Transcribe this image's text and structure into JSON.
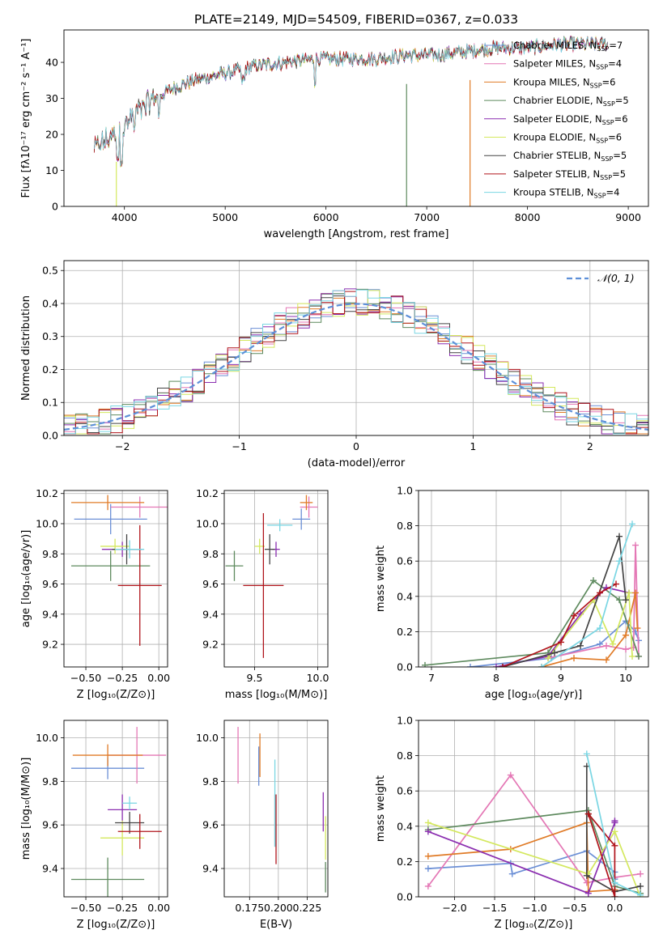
{
  "title": "PLATE=2149, MJD=54509, FIBERID=0367, z=0.033",
  "model_colors": [
    "#6b8fd6",
    "#e477b5",
    "#e07b27",
    "#5e8a5e",
    "#8b2fb0",
    "#d4e85e",
    "#444444",
    "#b0141b",
    "#7ad6e3"
  ],
  "chart_data": [
    {
      "id": "spectrum",
      "type": "line",
      "xlabel": "wavelength [Angstrom, rest frame]",
      "ylabel": "Flux [fλ10⁻¹⁷ erg cm⁻² s⁻¹ A⁻¹]",
      "xlim": [
        3400,
        9200
      ],
      "ylim": [
        0,
        49
      ],
      "xticks": [
        "4000",
        "5000",
        "6000",
        "7000",
        "8000",
        "9000"
      ],
      "yticks": [
        "0",
        "10",
        "20",
        "30",
        "40"
      ],
      "legend_position": "right",
      "legend": [
        "Chabrier MILES, N_SSP=7",
        "Salpeter MILES, N_SSP=4",
        "Kroupa MILES, N_SSP=6",
        "Chabrier ELODIE, N_SSP=5",
        "Salpeter ELODIE, N_SSP=6",
        "Kroupa ELODIE, N_SSP=6",
        "Chabrier STELIB, N_SSP=5",
        "Salpeter STELIB, N_SSP=5",
        "Kroupa STELIB, N_SSP=4"
      ],
      "continuum": {
        "x": [
          3700,
          3800,
          3900,
          4000,
          4100,
          4300,
          4500,
          4700,
          5000,
          5300,
          5600,
          5900,
          6200,
          6500,
          6800,
          7100,
          7400,
          7700,
          8000,
          8300,
          8600,
          8800
        ],
        "y": [
          16,
          18,
          20,
          22,
          26,
          30,
          33,
          35,
          37,
          39,
          40,
          41,
          41,
          41,
          42,
          42,
          43,
          44,
          44,
          45,
          45,
          45
        ]
      },
      "dropouts": [
        {
          "x": 3920,
          "y": 0
        },
        {
          "x": 6800,
          "y": 0
        },
        {
          "x": 7430,
          "y": 0
        }
      ]
    },
    {
      "id": "residuals",
      "type": "histogram",
      "xlabel": "(data-model)/error",
      "ylabel": "Normed distribution",
      "xlim": [
        -2.5,
        2.5
      ],
      "ylim": [
        0,
        0.53
      ],
      "xticks": [
        "−2",
        "−1",
        "0",
        "1",
        "2"
      ],
      "yticks": [
        "0.0",
        "0.1",
        "0.2",
        "0.3",
        "0.4",
        "0.5"
      ],
      "grid": true,
      "legend": [
        "𝒩(0, 1)"
      ],
      "legend_position": "top-right",
      "bin_width": 0.1,
      "bin_start": -2.5
    },
    {
      "id": "age_vs_Z",
      "type": "errorbar",
      "xlabel": "Z [log₁₀(Z/Z⊙)]",
      "ylabel": "age  [log₁₀(age/yr)]",
      "xlim": [
        -0.65,
        0.06
      ],
      "ylim": [
        9.05,
        10.22
      ],
      "xticks": [
        "−0.50",
        "−0.25",
        "0.00"
      ],
      "yticks": [
        "9.2",
        "9.4",
        "9.6",
        "9.8",
        "10.0",
        "10.2"
      ],
      "points": [
        {
          "x": -0.33,
          "y": 10.03,
          "xerr": 0.25,
          "yerr": 0.1
        },
        {
          "x": -0.13,
          "y": 10.11,
          "xerr": 0.2,
          "yerr": 0.07
        },
        {
          "x": -0.35,
          "y": 10.14,
          "xerr": 0.25,
          "yerr": 0.05
        },
        {
          "x": -0.33,
          "y": 9.72,
          "xerr": 0.27,
          "yerr": 0.1
        },
        {
          "x": -0.25,
          "y": 9.83,
          "xerr": 0.14,
          "yerr": 0.05
        },
        {
          "x": -0.3,
          "y": 9.85,
          "xerr": 0.1,
          "yerr": 0.05
        },
        {
          "x": -0.22,
          "y": 9.83,
          "xerr": 0.1,
          "yerr": 0.1
        },
        {
          "x": -0.13,
          "y": 9.59,
          "xerr": 0.15,
          "yerr": 0.4
        },
        {
          "x": -0.2,
          "y": 9.83,
          "xerr": 0.1,
          "yerr": 0.06
        }
      ]
    },
    {
      "id": "age_vs_mass",
      "type": "errorbar",
      "xlabel": "mass [log₁₀(M/M⊙)]",
      "ylabel": "",
      "xlim": [
        9.26,
        10.08
      ],
      "ylim": [
        9.05,
        10.22
      ],
      "xticks": [
        "9.5",
        "10.0"
      ],
      "yticks": [
        "9.2",
        "9.4",
        "9.6",
        "9.8",
        "10.0",
        "10.2"
      ],
      "points": [
        {
          "x": 9.87,
          "y": 10.03,
          "xerr": 0.07,
          "yerr": 0.07
        },
        {
          "x": 9.93,
          "y": 10.11,
          "xerr": 0.07,
          "yerr": 0.07
        },
        {
          "x": 9.91,
          "y": 10.14,
          "xerr": 0.05,
          "yerr": 0.05
        },
        {
          "x": 9.34,
          "y": 9.72,
          "xerr": 0.07,
          "yerr": 0.1
        },
        {
          "x": 9.67,
          "y": 9.83,
          "xerr": 0.03,
          "yerr": 0.05
        },
        {
          "x": 9.54,
          "y": 9.85,
          "xerr": 0.04,
          "yerr": 0.05
        },
        {
          "x": 9.62,
          "y": 9.83,
          "xerr": 0.04,
          "yerr": 0.1
        },
        {
          "x": 9.57,
          "y": 9.59,
          "xerr": 0.16,
          "yerr": 0.48
        },
        {
          "x": 9.7,
          "y": 9.99,
          "xerr": 0.1,
          "yerr": 0.04
        }
      ]
    },
    {
      "id": "weight_vs_age",
      "type": "line",
      "xlabel": "age  [log₁₀(age/yr)]",
      "ylabel": "mass weight",
      "xlim": [
        6.8,
        10.35
      ],
      "ylim": [
        0,
        1
      ],
      "xticks": [
        "7",
        "8",
        "9",
        "10"
      ],
      "yticks": [
        "0.0",
        "0.2",
        "0.4",
        "0.6",
        "0.8",
        "1.0"
      ],
      "series": [
        {
          "x": [
            7.6,
            8.85,
            9.6,
            10.0,
            10.15,
            10.2
          ],
          "y": [
            0.0,
            0.05,
            0.13,
            0.26,
            0.2,
            0.15
          ]
        },
        {
          "x": [
            8.8,
            9.7,
            10.0,
            10.12,
            10.15,
            10.2
          ],
          "y": [
            0.05,
            0.12,
            0.1,
            0.11,
            0.69,
            0.06
          ]
        },
        {
          "x": [
            8.7,
            9.2,
            9.7,
            10.0,
            10.15,
            10.18
          ],
          "y": [
            0.0,
            0.05,
            0.04,
            0.18,
            0.42,
            0.22
          ]
        },
        {
          "x": [
            6.9,
            8.8,
            9.5,
            9.9,
            10.2
          ],
          "y": [
            0.01,
            0.08,
            0.49,
            0.38,
            0.06
          ]
        },
        {
          "x": [
            8.0,
            8.8,
            9.3,
            9.7,
            10.05
          ],
          "y": [
            0.0,
            0.06,
            0.3,
            0.45,
            0.42
          ]
        },
        {
          "x": [
            8.8,
            9.5,
            9.8,
            10.05,
            10.1
          ],
          "y": [
            0.05,
            0.38,
            0.13,
            0.42,
            0.06
          ]
        },
        {
          "x": [
            8.1,
            8.9,
            9.3,
            9.9,
            10.0
          ],
          "y": [
            0.0,
            0.08,
            0.12,
            0.74,
            0.38
          ]
        },
        {
          "x": [
            8.1,
            9.0,
            9.2,
            9.6,
            9.85
          ],
          "y": [
            0.0,
            0.14,
            0.29,
            0.42,
            0.47
          ]
        },
        {
          "x": [
            8.7,
            9.6,
            9.9,
            10.1
          ],
          "y": [
            0.0,
            0.22,
            0.6,
            0.81
          ]
        }
      ]
    },
    {
      "id": "mass_vs_Z",
      "type": "errorbar",
      "xlabel": "Z [log₁₀(Z/Z⊙)]",
      "ylabel": "mass [log₁₀(M/M⊙)]",
      "xlim": [
        -0.65,
        0.06
      ],
      "ylim": [
        9.27,
        10.08
      ],
      "xticks": [
        "−0.50",
        "−0.25",
        "0.00"
      ],
      "yticks": [
        "9.4",
        "9.6",
        "9.8",
        "10.0"
      ],
      "points": [
        {
          "x": -0.35,
          "y": 9.86,
          "xerr": 0.25,
          "yerr": 0.05
        },
        {
          "x": -0.15,
          "y": 9.92,
          "xerr": 0.2,
          "yerr": 0.13
        },
        {
          "x": -0.35,
          "y": 9.92,
          "xerr": 0.24,
          "yerr": 0.05
        },
        {
          "x": -0.35,
          "y": 9.35,
          "xerr": 0.25,
          "yerr": 0.1
        },
        {
          "x": -0.25,
          "y": 9.67,
          "xerr": 0.1,
          "yerr": 0.07
        },
        {
          "x": -0.25,
          "y": 9.54,
          "xerr": 0.15,
          "yerr": 0.08
        },
        {
          "x": -0.2,
          "y": 9.61,
          "xerr": 0.1,
          "yerr": 0.05
        },
        {
          "x": -0.13,
          "y": 9.57,
          "xerr": 0.15,
          "yerr": 0.08
        },
        {
          "x": -0.2,
          "y": 9.7,
          "xerr": 0.05,
          "yerr": 0.03
        }
      ]
    },
    {
      "id": "mass_vs_EBV",
      "type": "errorbar",
      "xlabel": "E(B-V)",
      "ylabel": "",
      "xlim": [
        0.153,
        0.243
      ],
      "ylim": [
        9.27,
        10.08
      ],
      "xticks": [
        "0.175",
        "0.200",
        "0.225"
      ],
      "yticks": [
        "9.4",
        "9.6",
        "9.8",
        "10.0"
      ],
      "points": [
        {
          "x": 0.183,
          "y": 9.87,
          "xerr": 0,
          "yerr": 0.09
        },
        {
          "x": 0.165,
          "y": 9.92,
          "xerr": 0,
          "yerr": 0.13
        },
        {
          "x": 0.184,
          "y": 9.92,
          "xerr": 0,
          "yerr": 0.1
        },
        {
          "x": 0.241,
          "y": 9.36,
          "xerr": 0,
          "yerr": 0.07
        },
        {
          "x": 0.239,
          "y": 9.66,
          "xerr": 0,
          "yerr": 0.09
        },
        {
          "x": 0.241,
          "y": 9.54,
          "xerr": 0,
          "yerr": 0.1
        },
        {
          "x": 0.197,
          "y": 9.62,
          "xerr": 0,
          "yerr": 0.12
        },
        {
          "x": 0.198,
          "y": 9.58,
          "xerr": 0,
          "yerr": 0.16
        },
        {
          "x": 0.197,
          "y": 9.7,
          "xerr": 0,
          "yerr": 0.2
        }
      ]
    },
    {
      "id": "weight_vs_Z",
      "type": "line",
      "xlabel": "Z [log₁₀(Z/Z⊙)]",
      "ylabel": "mass weight",
      "xlim": [
        -2.45,
        0.42
      ],
      "ylim": [
        0,
        1
      ],
      "xticks": [
        "−2.0",
        "−1.5",
        "−1.0",
        "−0.5",
        "0.0"
      ],
      "yticks": [
        "0.0",
        "0.2",
        "0.4",
        "0.6",
        "0.8",
        "1.0"
      ],
      "series": [
        {
          "x": [
            -2.33,
            -1.3,
            -1.28,
            -0.35,
            0.0,
            0.0
          ],
          "y": [
            0.16,
            0.19,
            0.13,
            0.26,
            0.14,
            0.1
          ]
        },
        {
          "x": [
            -2.33,
            -1.3,
            -0.35,
            0.0,
            0.32
          ],
          "y": [
            0.06,
            0.69,
            0.08,
            0.11,
            0.13
          ]
        },
        {
          "x": [
            -2.33,
            -1.3,
            -0.35,
            -0.33,
            0.0
          ],
          "y": [
            0.23,
            0.27,
            0.42,
            0.03,
            0.04
          ]
        },
        {
          "x": [
            -2.33,
            -0.33,
            0.0,
            0.32
          ],
          "y": [
            0.38,
            0.49,
            0.06,
            0.02
          ]
        },
        {
          "x": [
            -2.33,
            -0.33,
            0.0,
            0.0
          ],
          "y": [
            0.37,
            0.02,
            0.42,
            0.43
          ]
        },
        {
          "x": [
            -2.33,
            -0.33,
            0.0,
            0.32
          ],
          "y": [
            0.42,
            0.13,
            0.37,
            0.0
          ]
        },
        {
          "x": [
            -0.35,
            -0.35,
            0.0,
            0.32
          ],
          "y": [
            0.74,
            0.12,
            0.03,
            0.06
          ]
        },
        {
          "x": [
            -0.33,
            0.0,
            0.0,
            -0.33
          ],
          "y": [
            0.47,
            0.29,
            0.0,
            0.47
          ]
        },
        {
          "x": [
            -0.35,
            0.0,
            0.32
          ],
          "y": [
            0.81,
            0.08,
            0.01
          ]
        }
      ]
    }
  ]
}
